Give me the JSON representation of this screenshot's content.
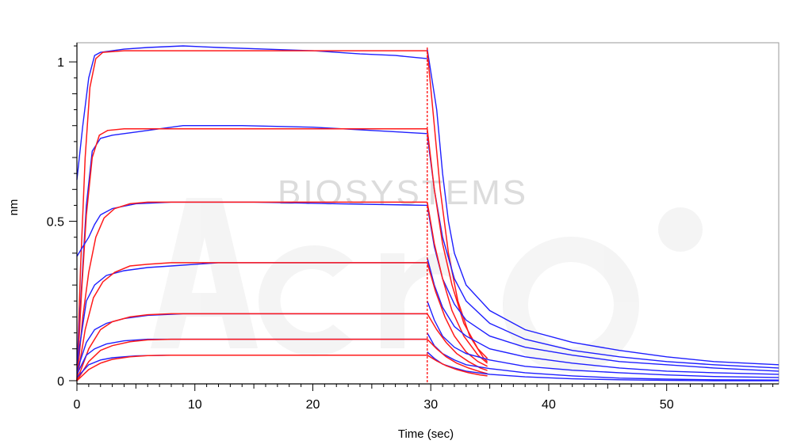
{
  "chart_data": {
    "type": "line",
    "title": "",
    "xlabel": "Time (sec)",
    "ylabel": "nm",
    "xlim": [
      0,
      59.5
    ],
    "ylim": [
      -0.01,
      1.06
    ],
    "xticks": [
      0,
      10,
      20,
      30,
      40,
      50
    ],
    "yticks": [
      0,
      0.5,
      1
    ],
    "xtick_labels": [
      "0",
      "10",
      "20",
      "30",
      "40",
      "50"
    ],
    "ytick_labels": [
      "0",
      "0.5",
      "1"
    ],
    "grid": false,
    "legend": "none",
    "colors": {
      "measured": "#1f1fff",
      "fit": "#ff1a1a",
      "axis": "#000000",
      "frame": "#9a9a9a"
    },
    "watermark": {
      "text": "BIOSYSTEMS",
      "logo_text": "Acro"
    },
    "dissociation_start": 29.7,
    "series": [
      {
        "measured_association": [
          [
            0,
            0.63
          ],
          [
            0.5,
            0.8
          ],
          [
            1,
            0.95
          ],
          [
            1.5,
            1.02
          ],
          [
            2,
            1.03
          ],
          [
            4,
            1.04
          ],
          [
            6,
            1.045
          ],
          [
            9,
            1.05
          ],
          [
            12,
            1.045
          ],
          [
            16,
            1.04
          ],
          [
            20,
            1.035
          ],
          [
            24,
            1.025
          ],
          [
            27,
            1.02
          ],
          [
            29.7,
            1.01
          ]
        ],
        "measured_dissociation": [
          [
            29.7,
            1.04
          ],
          [
            30.5,
            0.85
          ],
          [
            31,
            0.65
          ],
          [
            31.5,
            0.5
          ],
          [
            32,
            0.4
          ],
          [
            33,
            0.3
          ],
          [
            35,
            0.22
          ],
          [
            38,
            0.16
          ],
          [
            42,
            0.12
          ],
          [
            46,
            0.095
          ],
          [
            50,
            0.075
          ],
          [
            54,
            0.06
          ],
          [
            59.5,
            0.05
          ]
        ],
        "fit_association": [
          [
            0,
            0
          ],
          [
            0.3,
            0.35
          ],
          [
            0.7,
            0.7
          ],
          [
            1.1,
            0.92
          ],
          [
            1.6,
            1.01
          ],
          [
            2.2,
            1.03
          ],
          [
            4,
            1.035
          ],
          [
            29.7,
            1.035
          ]
        ],
        "fit_dissociation": [
          [
            29.7,
            1.035
          ],
          [
            30.3,
            0.8
          ],
          [
            30.8,
            0.6
          ],
          [
            31.5,
            0.4
          ],
          [
            32.3,
            0.25
          ],
          [
            33.3,
            0.14
          ],
          [
            34.5,
            0.07
          ],
          [
            34.8,
            0.06
          ]
        ]
      },
      {
        "measured_association": [
          [
            0,
            0.05
          ],
          [
            0.8,
            0.55
          ],
          [
            1.3,
            0.72
          ],
          [
            2,
            0.76
          ],
          [
            3,
            0.77
          ],
          [
            5,
            0.78
          ],
          [
            9,
            0.8
          ],
          [
            14,
            0.8
          ],
          [
            20,
            0.795
          ],
          [
            25,
            0.785
          ],
          [
            29.7,
            0.775
          ]
        ],
        "measured_dissociation": [
          [
            29.7,
            0.77
          ],
          [
            30.3,
            0.6
          ],
          [
            31,
            0.45
          ],
          [
            32,
            0.32
          ],
          [
            33,
            0.25
          ],
          [
            35,
            0.18
          ],
          [
            38,
            0.13
          ],
          [
            42,
            0.095
          ],
          [
            46,
            0.075
          ],
          [
            50,
            0.06
          ],
          [
            54,
            0.05
          ],
          [
            59.5,
            0.04
          ]
        ],
        "fit_association": [
          [
            0,
            0
          ],
          [
            0.4,
            0.28
          ],
          [
            0.8,
            0.52
          ],
          [
            1.3,
            0.7
          ],
          [
            1.9,
            0.77
          ],
          [
            2.6,
            0.785
          ],
          [
            4,
            0.79
          ],
          [
            29.7,
            0.79
          ]
        ],
        "fit_dissociation": [
          [
            29.7,
            0.79
          ],
          [
            30.3,
            0.6
          ],
          [
            31,
            0.43
          ],
          [
            31.8,
            0.3
          ],
          [
            32.8,
            0.18
          ],
          [
            34,
            0.1
          ],
          [
            34.8,
            0.07
          ]
        ]
      },
      {
        "measured_association": [
          [
            0,
            0.39
          ],
          [
            0.5,
            0.42
          ],
          [
            1,
            0.45
          ],
          [
            1.5,
            0.49
          ],
          [
            2,
            0.52
          ],
          [
            3,
            0.54
          ],
          [
            5,
            0.555
          ],
          [
            8,
            0.56
          ],
          [
            15,
            0.56
          ],
          [
            22,
            0.555
          ],
          [
            29.7,
            0.55
          ]
        ],
        "measured_dissociation": [
          [
            29.7,
            0.55
          ],
          [
            30.3,
            0.42
          ],
          [
            31,
            0.32
          ],
          [
            32,
            0.24
          ],
          [
            33,
            0.19
          ],
          [
            35,
            0.14
          ],
          [
            38,
            0.105
          ],
          [
            42,
            0.08
          ],
          [
            46,
            0.06
          ],
          [
            50,
            0.05
          ],
          [
            54,
            0.04
          ],
          [
            59.5,
            0.03
          ]
        ],
        "fit_association": [
          [
            0,
            0
          ],
          [
            0.5,
            0.2
          ],
          [
            1,
            0.34
          ],
          [
            1.6,
            0.45
          ],
          [
            2.3,
            0.51
          ],
          [
            3.2,
            0.54
          ],
          [
            4.5,
            0.555
          ],
          [
            6,
            0.56
          ],
          [
            29.7,
            0.56
          ]
        ],
        "fit_dissociation": [
          [
            29.7,
            0.56
          ],
          [
            30.3,
            0.43
          ],
          [
            31,
            0.32
          ],
          [
            31.8,
            0.22
          ],
          [
            32.8,
            0.14
          ],
          [
            34,
            0.08
          ],
          [
            34.8,
            0.055
          ]
        ]
      },
      {
        "measured_association": [
          [
            0,
            0.05
          ],
          [
            0.8,
            0.25
          ],
          [
            1.5,
            0.3
          ],
          [
            2.5,
            0.33
          ],
          [
            4,
            0.345
          ],
          [
            6,
            0.355
          ],
          [
            8,
            0.36
          ],
          [
            12,
            0.37
          ],
          [
            18,
            0.37
          ],
          [
            25,
            0.37
          ],
          [
            29.7,
            0.37
          ]
        ],
        "measured_dissociation": [
          [
            29.7,
            0.385
          ],
          [
            30.3,
            0.3
          ],
          [
            31,
            0.23
          ],
          [
            32,
            0.17
          ],
          [
            33,
            0.14
          ],
          [
            35,
            0.1
          ],
          [
            38,
            0.075
          ],
          [
            42,
            0.055
          ],
          [
            46,
            0.04
          ],
          [
            50,
            0.03
          ],
          [
            54,
            0.025
          ],
          [
            59.5,
            0.02
          ]
        ],
        "fit_association": [
          [
            0,
            0
          ],
          [
            0.7,
            0.16
          ],
          [
            1.4,
            0.26
          ],
          [
            2.2,
            0.31
          ],
          [
            3.2,
            0.34
          ],
          [
            4.5,
            0.36
          ],
          [
            6,
            0.365
          ],
          [
            8,
            0.37
          ],
          [
            29.7,
            0.37
          ]
        ],
        "fit_dissociation": [
          [
            29.7,
            0.37
          ],
          [
            30.4,
            0.28
          ],
          [
            31.2,
            0.2
          ],
          [
            32,
            0.14
          ],
          [
            33,
            0.09
          ],
          [
            34,
            0.06
          ],
          [
            34.8,
            0.045
          ]
        ]
      },
      {
        "measured_association": [
          [
            0,
            0.03
          ],
          [
            0.8,
            0.12
          ],
          [
            1.5,
            0.16
          ],
          [
            2.5,
            0.18
          ],
          [
            4,
            0.195
          ],
          [
            6,
            0.205
          ],
          [
            9,
            0.21
          ],
          [
            15,
            0.21
          ],
          [
            22,
            0.21
          ],
          [
            29.7,
            0.21
          ]
        ],
        "measured_dissociation": [
          [
            29.7,
            0.25
          ],
          [
            30.3,
            0.19
          ],
          [
            31,
            0.14
          ],
          [
            32,
            0.105
          ],
          [
            33,
            0.085
          ],
          [
            35,
            0.065
          ],
          [
            38,
            0.045
          ],
          [
            42,
            0.033
          ],
          [
            46,
            0.025
          ],
          [
            50,
            0.018
          ],
          [
            54,
            0.013
          ],
          [
            59.5,
            0.01
          ]
        ],
        "fit_association": [
          [
            0,
            0
          ],
          [
            1,
            0.1
          ],
          [
            2,
            0.16
          ],
          [
            3,
            0.185
          ],
          [
            4.5,
            0.2
          ],
          [
            6,
            0.207
          ],
          [
            8,
            0.21
          ],
          [
            29.7,
            0.21
          ]
        ],
        "fit_dissociation": [
          [
            29.7,
            0.21
          ],
          [
            30.5,
            0.16
          ],
          [
            31.3,
            0.12
          ],
          [
            32.2,
            0.085
          ],
          [
            33.2,
            0.06
          ],
          [
            34.2,
            0.04
          ],
          [
            34.8,
            0.032
          ]
        ]
      },
      {
        "measured_association": [
          [
            0,
            0.02
          ],
          [
            0.8,
            0.08
          ],
          [
            1.5,
            0.1
          ],
          [
            2.5,
            0.115
          ],
          [
            4,
            0.125
          ],
          [
            6,
            0.13
          ],
          [
            10,
            0.13
          ],
          [
            18,
            0.13
          ],
          [
            25,
            0.13
          ],
          [
            29.7,
            0.13
          ]
        ],
        "measured_dissociation": [
          [
            29.7,
            0.15
          ],
          [
            30.3,
            0.11
          ],
          [
            31,
            0.085
          ],
          [
            32,
            0.065
          ],
          [
            33,
            0.05
          ],
          [
            35,
            0.038
          ],
          [
            38,
            0.025
          ],
          [
            42,
            0.015
          ],
          [
            46,
            0.008
          ],
          [
            50,
            0.005
          ],
          [
            54,
            0.003
          ],
          [
            59.5,
            0.002
          ]
        ],
        "fit_association": [
          [
            0,
            0
          ],
          [
            1,
            0.06
          ],
          [
            2,
            0.095
          ],
          [
            3,
            0.11
          ],
          [
            4.5,
            0.122
          ],
          [
            6,
            0.128
          ],
          [
            8,
            0.13
          ],
          [
            29.7,
            0.13
          ]
        ],
        "fit_dissociation": [
          [
            29.7,
            0.13
          ],
          [
            30.5,
            0.1
          ],
          [
            31.3,
            0.075
          ],
          [
            32.2,
            0.055
          ],
          [
            33.2,
            0.04
          ],
          [
            34.2,
            0.028
          ],
          [
            34.8,
            0.022
          ]
        ]
      },
      {
        "measured_association": [
          [
            0,
            0.01
          ],
          [
            1,
            0.05
          ],
          [
            2,
            0.065
          ],
          [
            3,
            0.072
          ],
          [
            5,
            0.078
          ],
          [
            8,
            0.08
          ],
          [
            15,
            0.08
          ],
          [
            22,
            0.08
          ],
          [
            29.7,
            0.08
          ]
        ],
        "measured_dissociation": [
          [
            29.7,
            0.09
          ],
          [
            30.3,
            0.07
          ],
          [
            31,
            0.052
          ],
          [
            32,
            0.04
          ],
          [
            33,
            0.03
          ],
          [
            35,
            0.02
          ],
          [
            38,
            0.012
          ],
          [
            42,
            0.006
          ],
          [
            46,
            0.003
          ],
          [
            50,
            0.001
          ],
          [
            54,
            0
          ],
          [
            59.5,
            0
          ]
        ],
        "fit_association": [
          [
            0,
            0
          ],
          [
            1,
            0.035
          ],
          [
            2,
            0.055
          ],
          [
            3,
            0.067
          ],
          [
            4.5,
            0.075
          ],
          [
            6,
            0.079
          ],
          [
            8,
            0.08
          ],
          [
            29.7,
            0.08
          ]
        ],
        "fit_dissociation": [
          [
            29.7,
            0.08
          ],
          [
            30.5,
            0.062
          ],
          [
            31.3,
            0.047
          ],
          [
            32.2,
            0.035
          ],
          [
            33.2,
            0.025
          ],
          [
            34.2,
            0.018
          ],
          [
            34.8,
            0.015
          ]
        ]
      }
    ]
  }
}
